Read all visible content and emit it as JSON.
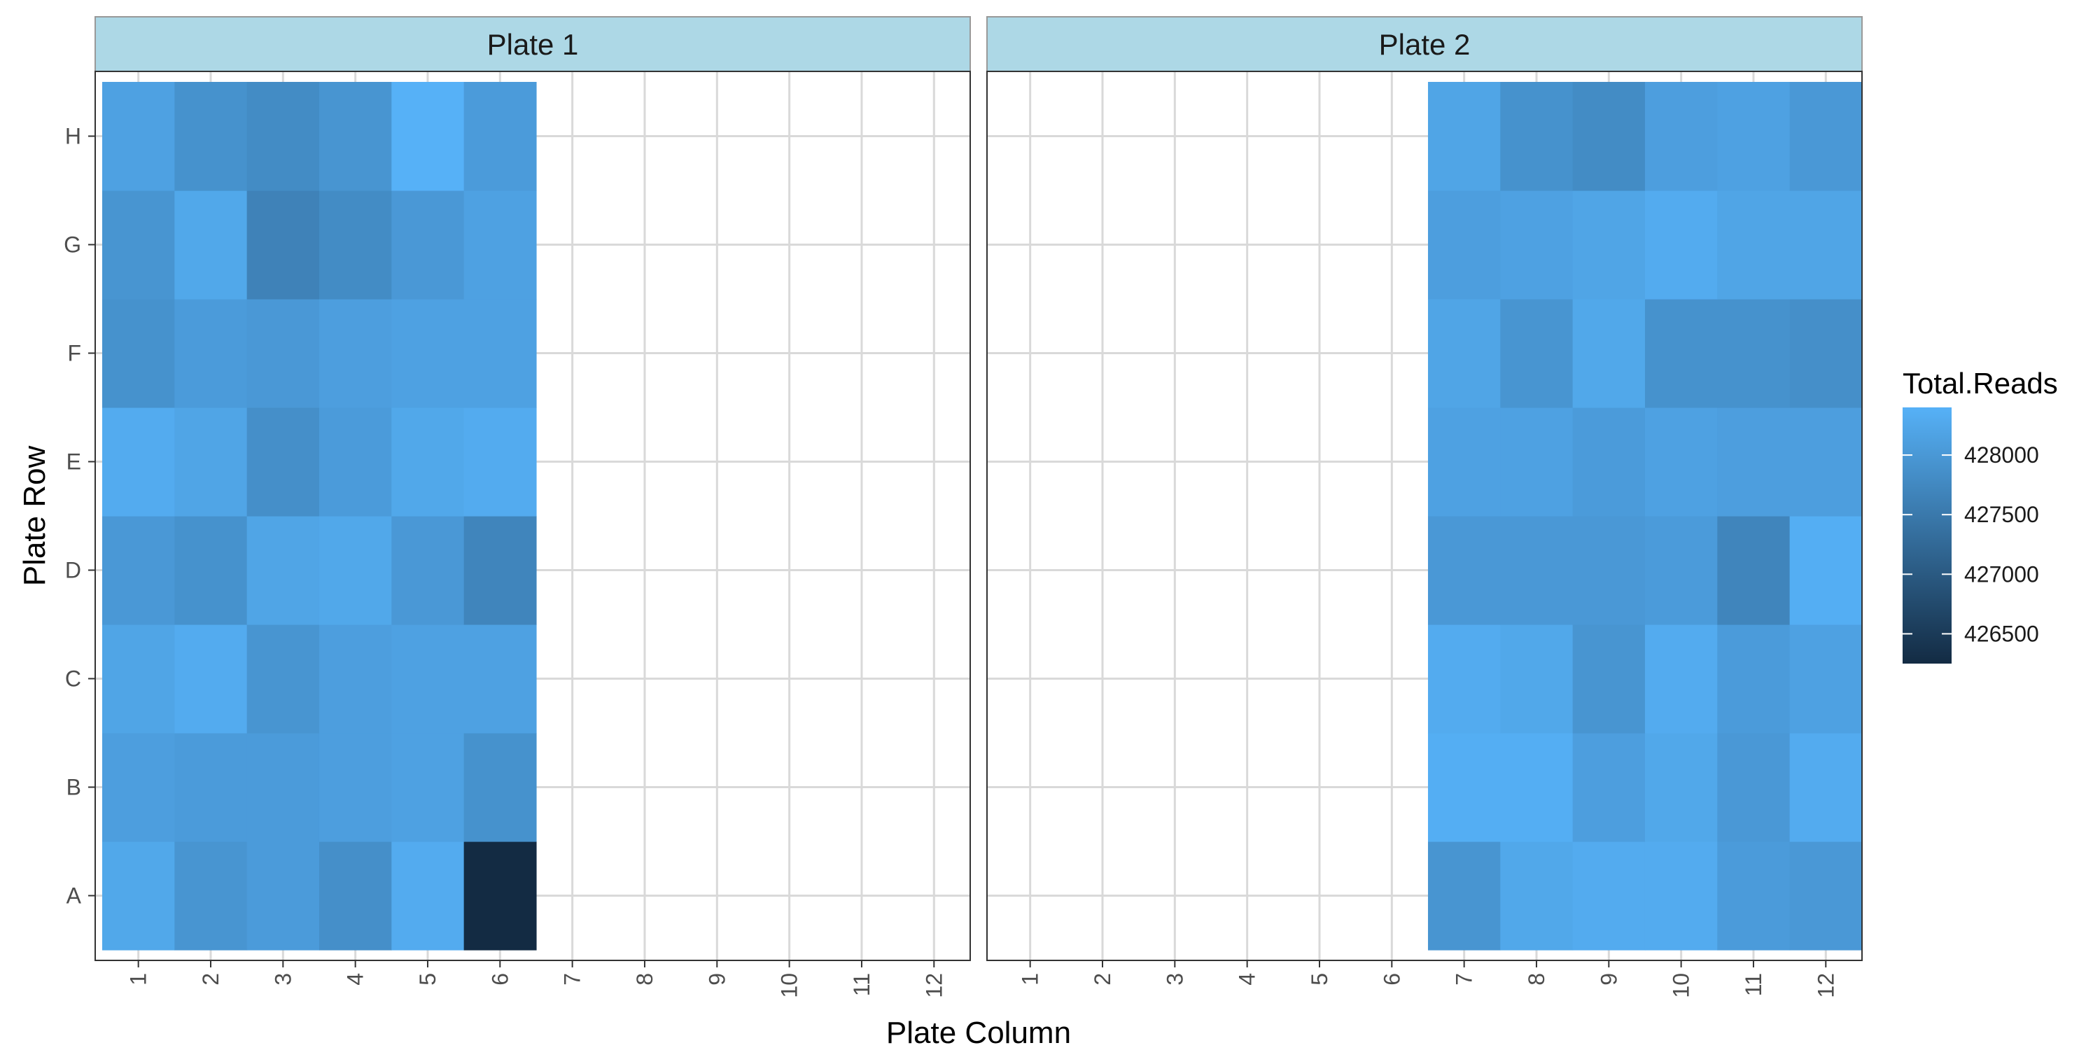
{
  "chart_data": {
    "type": "heatmap",
    "xlabel": "Plate Column",
    "ylabel": "Plate Row",
    "x_categories": [
      "1",
      "2",
      "3",
      "4",
      "5",
      "6",
      "7",
      "8",
      "9",
      "10",
      "11",
      "12"
    ],
    "y_categories": [
      "A",
      "B",
      "C",
      "D",
      "E",
      "F",
      "G",
      "H"
    ],
    "grid": true,
    "legend": {
      "title": "Total.Reads",
      "position": "right",
      "breaks": [
        428000,
        427500,
        427000,
        426500
      ],
      "labels": [
        "428000",
        "427500",
        "427000",
        "426500"
      ],
      "range": [
        426250,
        428400
      ],
      "color_low": "#132B43",
      "color_high": "#56B1F7"
    },
    "panels": [
      {
        "title": "Plate 1",
        "columns": [
          1,
          2,
          3,
          4,
          5,
          6
        ],
        "rows": {
          "H": [
            428150,
            427900,
            427800,
            427950,
            428400,
            428050
          ],
          "G": [
            427950,
            428250,
            427650,
            427800,
            428000,
            428150
          ],
          "F": [
            427900,
            428050,
            428000,
            428100,
            428150,
            428150
          ],
          "E": [
            428300,
            428200,
            427850,
            428050,
            428250,
            428300
          ],
          "D": [
            428000,
            427900,
            428200,
            428250,
            428000,
            427700
          ],
          "C": [
            428200,
            428300,
            427950,
            428100,
            428150,
            428150
          ],
          "B": [
            428100,
            428050,
            428050,
            428100,
            428150,
            427900
          ],
          "A": [
            428250,
            427950,
            428050,
            427850,
            428300,
            426250
          ]
        }
      },
      {
        "title": "Plate 2",
        "columns": [
          7,
          8,
          9,
          10,
          11,
          12
        ],
        "rows": {
          "H": [
            428200,
            427900,
            427800,
            428100,
            428150,
            428000
          ],
          "G": [
            428100,
            428150,
            428200,
            428300,
            428200,
            428200
          ],
          "F": [
            428200,
            427950,
            428250,
            427900,
            427900,
            427850
          ],
          "E": [
            428150,
            428150,
            428050,
            428150,
            428100,
            428100
          ],
          "D": [
            428000,
            428000,
            428000,
            428050,
            427700,
            428350
          ],
          "C": [
            428300,
            428250,
            427950,
            428300,
            428050,
            428150
          ],
          "B": [
            428350,
            428350,
            428100,
            428250,
            428000,
            428300
          ],
          "A": [
            427950,
            428250,
            428300,
            428300,
            428050,
            428000
          ]
        }
      }
    ]
  }
}
